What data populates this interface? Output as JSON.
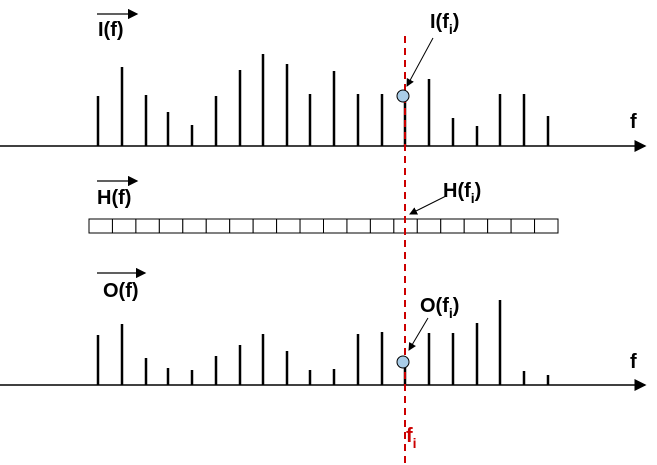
{
  "input": {
    "label": "I(f)",
    "at": {
      "base": "I(f",
      "sub": "i",
      "close": ")"
    }
  },
  "filter": {
    "label": "H(f)",
    "at": {
      "base": "H(f",
      "sub": "i",
      "close": ")"
    }
  },
  "output": {
    "label": "O(f)",
    "at": {
      "base": "O(f",
      "sub": "i",
      "close": ")"
    }
  },
  "axis_label": "f",
  "marker": {
    "base": "f",
    "sub": "i"
  }
}
